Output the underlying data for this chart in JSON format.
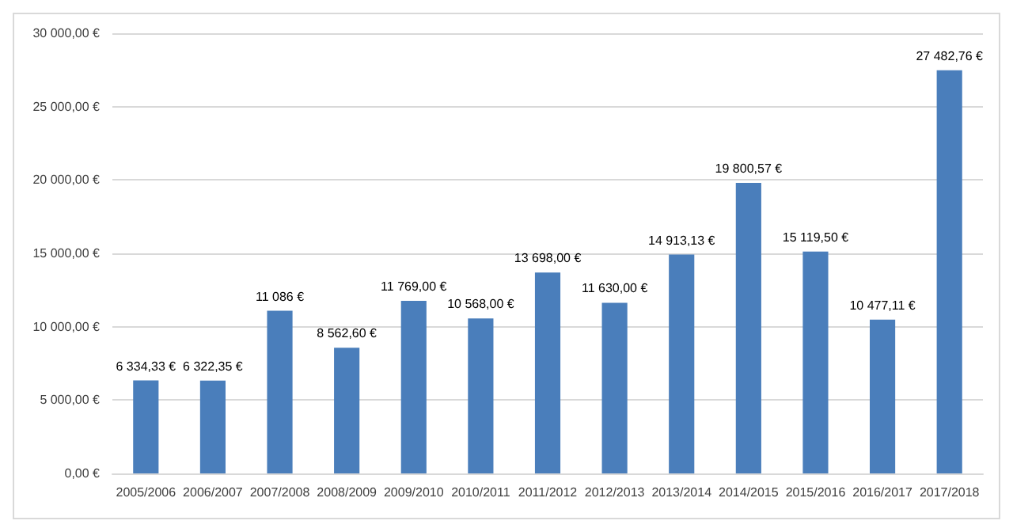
{
  "chart_data": {
    "type": "bar",
    "categories": [
      "2005/2006",
      "2006/2007",
      "2007/2008",
      "2008/2009",
      "2009/2010",
      "2010/2011",
      "2011/2012",
      "2012/2013",
      "2013/2014",
      "2014/2015",
      "2015/2016",
      "2016/2017",
      "2017/2018"
    ],
    "values": [
      6334.33,
      6322.35,
      11086,
      8562.6,
      11769.0,
      10568.0,
      13698.0,
      11630.0,
      14913.13,
      19800.57,
      15119.5,
      10477.11,
      27482.76
    ],
    "value_labels": [
      "6 334,33 €",
      "6 322,35 €",
      "11 086 €",
      "8 562,60 €",
      "11 769,00 €",
      "10 568,00 €",
      "13 698,00 €",
      "11 630,00 €",
      "14 913,13 €",
      "19 800,57 €",
      "15 119,50 €",
      "10 477,11 €",
      "27 482,76 €"
    ],
    "color": "#4a7ebb",
    "ylim": [
      0,
      30000
    ],
    "yticks": [
      {
        "value": 0,
        "label": "0,00 €"
      },
      {
        "value": 5000,
        "label": "5 000,00 €"
      },
      {
        "value": 10000,
        "label": "10 000,00 €"
      },
      {
        "value": 15000,
        "label": "15 000,00 €"
      },
      {
        "value": 20000,
        "label": "20 000,00 €"
      },
      {
        "value": 25000,
        "label": "25 000,00 €"
      },
      {
        "value": 30000,
        "label": "30 000,00 €"
      }
    ],
    "grid": true
  }
}
